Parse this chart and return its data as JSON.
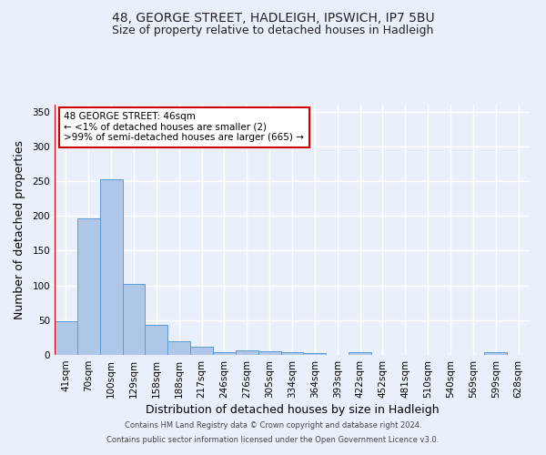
{
  "title1": "48, GEORGE STREET, HADLEIGH, IPSWICH, IP7 5BU",
  "title2": "Size of property relative to detached houses in Hadleigh",
  "xlabel": "Distribution of detached houses by size in Hadleigh",
  "ylabel": "Number of detached properties",
  "footnote1": "Contains HM Land Registry data © Crown copyright and database right 2024.",
  "footnote2": "Contains public sector information licensed under the Open Government Licence v3.0.",
  "categories": [
    "41sqm",
    "70sqm",
    "100sqm",
    "129sqm",
    "158sqm",
    "188sqm",
    "217sqm",
    "246sqm",
    "276sqm",
    "305sqm",
    "334sqm",
    "364sqm",
    "393sqm",
    "422sqm",
    "452sqm",
    "481sqm",
    "510sqm",
    "540sqm",
    "569sqm",
    "599sqm",
    "628sqm"
  ],
  "values": [
    48,
    196,
    252,
    102,
    43,
    19,
    12,
    4,
    6,
    5,
    4,
    2,
    0,
    4,
    0,
    0,
    0,
    0,
    0,
    4,
    0
  ],
  "bar_color": "#aec6e8",
  "bar_edge_color": "#5b9bd5",
  "highlight_color": "#cc0000",
  "annotation_text": "48 GEORGE STREET: 46sqm\n← <1% of detached houses are smaller (2)\n>99% of semi-detached houses are larger (665) →",
  "annotation_box_color": "#ffffff",
  "annotation_box_edge": "#cc0000",
  "ylim": [
    0,
    360
  ],
  "yticks": [
    0,
    50,
    100,
    150,
    200,
    250,
    300,
    350
  ],
  "bg_color": "#eaf0fb",
  "plot_bg_color": "#eaf0fb",
  "grid_color": "#ffffff",
  "title1_fontsize": 10,
  "title2_fontsize": 9,
  "xlabel_fontsize": 9,
  "ylabel_fontsize": 9,
  "tick_fontsize": 7.5,
  "annotation_fontsize": 7.5,
  "footnote_fontsize": 6
}
